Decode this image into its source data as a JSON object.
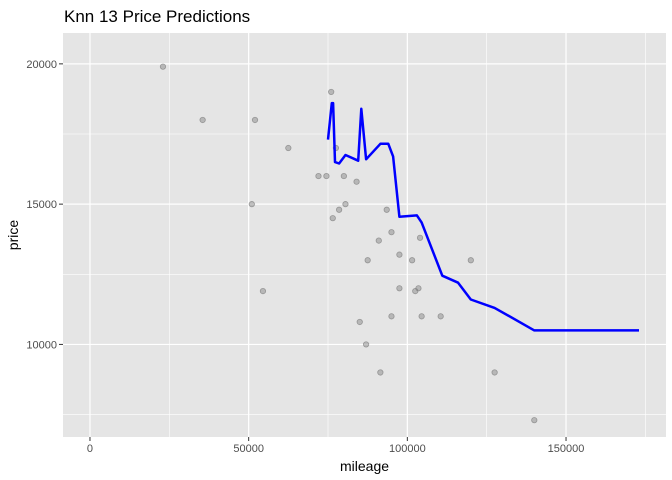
{
  "chart_data": {
    "type": "scatter",
    "title": "Knn 13 Price Predictions",
    "xlabel": "mileage",
    "ylabel": "price",
    "xlim": [
      -8500,
      181500
    ],
    "ylim": [
      6700,
      21100
    ],
    "x_ticks": [
      0,
      50000,
      100000,
      150000
    ],
    "x_tick_labels": [
      "0",
      "50000",
      "100000",
      "150000"
    ],
    "y_ticks": [
      10000,
      15000,
      20000
    ],
    "y_tick_labels": [
      "10000",
      "15000",
      "20000"
    ],
    "grid": true,
    "legend": "none",
    "colors": {
      "panel": "#e5e5e5",
      "grid": "#ffffff",
      "points": "#7f7f7f",
      "line": "#0000ff"
    },
    "points": [
      {
        "x": 23000,
        "y": 19900
      },
      {
        "x": 35500,
        "y": 18000
      },
      {
        "x": 51000,
        "y": 15000
      },
      {
        "x": 52000,
        "y": 18000
      },
      {
        "x": 54500,
        "y": 11900
      },
      {
        "x": 62500,
        "y": 17000
      },
      {
        "x": 72000,
        "y": 16000
      },
      {
        "x": 74500,
        "y": 16000
      },
      {
        "x": 76000,
        "y": 19000
      },
      {
        "x": 76500,
        "y": 14500
      },
      {
        "x": 77500,
        "y": 17000
      },
      {
        "x": 78500,
        "y": 14800
      },
      {
        "x": 80500,
        "y": 15000
      },
      {
        "x": 80000,
        "y": 16000
      },
      {
        "x": 84000,
        "y": 15800
      },
      {
        "x": 85000,
        "y": 10800
      },
      {
        "x": 87000,
        "y": 10000
      },
      {
        "x": 87500,
        "y": 13000
      },
      {
        "x": 91000,
        "y": 13700
      },
      {
        "x": 91500,
        "y": 9000
      },
      {
        "x": 93500,
        "y": 14800
      },
      {
        "x": 95000,
        "y": 14000
      },
      {
        "x": 95000,
        "y": 11000
      },
      {
        "x": 97500,
        "y": 13200
      },
      {
        "x": 97500,
        "y": 12000
      },
      {
        "x": 101500,
        "y": 13000
      },
      {
        "x": 102500,
        "y": 11900
      },
      {
        "x": 103500,
        "y": 12000
      },
      {
        "x": 104000,
        "y": 13800
      },
      {
        "x": 104500,
        "y": 11000
      },
      {
        "x": 110500,
        "y": 11000
      },
      {
        "x": 120000,
        "y": 13000
      },
      {
        "x": 127500,
        "y": 9000
      },
      {
        "x": 140000,
        "y": 7300
      }
    ],
    "prediction_line": [
      {
        "x": 75000,
        "y": 17300
      },
      {
        "x": 76200,
        "y": 18600
      },
      {
        "x": 76600,
        "y": 18600
      },
      {
        "x": 77200,
        "y": 16500
      },
      {
        "x": 78500,
        "y": 16450
      },
      {
        "x": 80500,
        "y": 16750
      },
      {
        "x": 84500,
        "y": 16550
      },
      {
        "x": 85500,
        "y": 18400
      },
      {
        "x": 87000,
        "y": 16600
      },
      {
        "x": 91500,
        "y": 17150
      },
      {
        "x": 94000,
        "y": 17150
      },
      {
        "x": 95500,
        "y": 16700
      },
      {
        "x": 97500,
        "y": 14550
      },
      {
        "x": 103000,
        "y": 14600
      },
      {
        "x": 104500,
        "y": 14350
      },
      {
        "x": 111000,
        "y": 12450
      },
      {
        "x": 116000,
        "y": 12200
      },
      {
        "x": 120000,
        "y": 11600
      },
      {
        "x": 127500,
        "y": 11300
      },
      {
        "x": 140000,
        "y": 10500
      },
      {
        "x": 173000,
        "y": 10500
      }
    ]
  }
}
